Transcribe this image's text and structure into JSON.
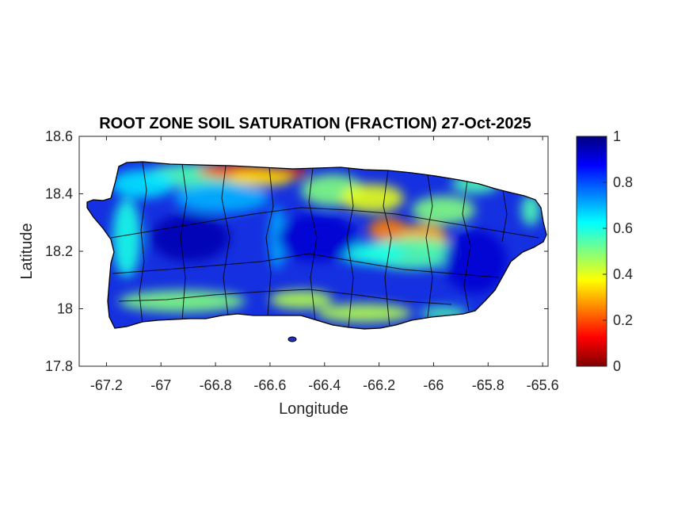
{
  "map": {
    "title": "ROOT ZONE SOIL SATURATION (FRACTION) 27-Oct-2025",
    "xlabel": "Longitude",
    "ylabel": "Latitude",
    "xlim": [
      -67.3,
      -65.58
    ],
    "ylim": [
      17.8,
      18.6
    ],
    "x_ticks": [
      -67.2,
      -67,
      -66.8,
      -66.6,
      -66.4,
      -66.2,
      -66,
      -65.8,
      -65.6
    ],
    "x_tick_labels": [
      "-67.2",
      "-67",
      "-66.8",
      "-66.6",
      "-66.4",
      "-66.2",
      "-66",
      "-65.8",
      "-65.6"
    ],
    "y_ticks": [
      18.6,
      18.4,
      18.2,
      18,
      17.8
    ],
    "y_tick_labels": [
      "18.6",
      "18.4",
      "18.2",
      "18",
      "17.8"
    ],
    "region": "Puerto Rico",
    "colormap": "jet",
    "background_color": "#ffffff",
    "boundary_color": "#000000"
  },
  "colorbar": {
    "range": [
      0,
      1
    ],
    "ticks": [
      0,
      0.2,
      0.4,
      0.6,
      0.8,
      1
    ],
    "tick_labels": [
      "0",
      "0.2",
      "0.4",
      "0.6",
      "0.8",
      "1"
    ],
    "colors": [
      "#800000",
      "#ff0000",
      "#ff8000",
      "#ffff00",
      "#80ff80",
      "#00ffff",
      "#0080ff",
      "#0000ff",
      "#000080"
    ]
  }
}
